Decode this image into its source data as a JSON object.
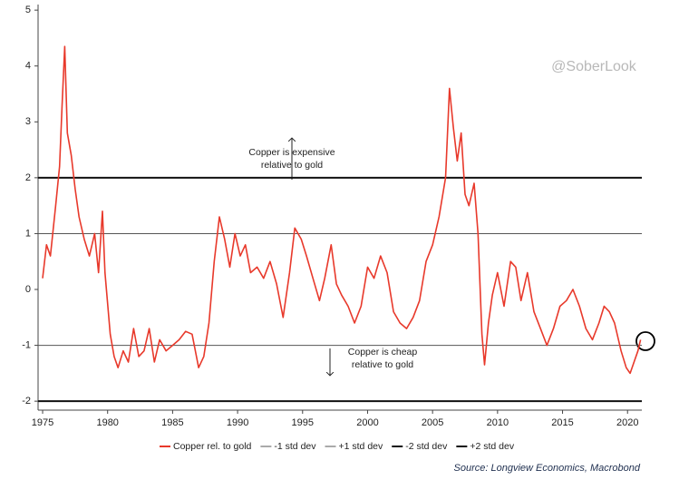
{
  "chart_data": {
    "type": "line",
    "series": [
      {
        "name": "Copper rel. to gold",
        "color": "#e8392b",
        "x": [
          1975.0,
          1975.3,
          1975.6,
          1976.0,
          1976.3,
          1976.5,
          1976.7,
          1976.9,
          1977.2,
          1977.5,
          1977.8,
          1978.2,
          1978.6,
          1979.0,
          1979.3,
          1979.6,
          1979.8,
          1980.2,
          1980.5,
          1980.8,
          1981.2,
          1981.6,
          1982.0,
          1982.4,
          1982.8,
          1983.2,
          1983.6,
          1984.0,
          1984.5,
          1985.0,
          1985.5,
          1986.0,
          1986.5,
          1987.0,
          1987.4,
          1987.8,
          1988.2,
          1988.6,
          1989.0,
          1989.4,
          1989.8,
          1990.2,
          1990.6,
          1991.0,
          1991.5,
          1992.0,
          1992.5,
          1993.0,
          1993.5,
          1994.0,
          1994.4,
          1994.9,
          1995.3,
          1995.8,
          1996.3,
          1996.7,
          1997.2,
          1997.6,
          1998.0,
          1998.5,
          1999.0,
          1999.5,
          2000.0,
          2000.5,
          2001.0,
          2001.5,
          2002.0,
          2002.5,
          2003.0,
          2003.5,
          2004.0,
          2004.5,
          2005.0,
          2005.5,
          2006.0,
          2006.3,
          2006.6,
          2006.9,
          2007.2,
          2007.5,
          2007.8,
          2008.2,
          2008.5,
          2008.8,
          2009.0,
          2009.3,
          2009.6,
          2010.0,
          2010.5,
          2011.0,
          2011.4,
          2011.8,
          2012.3,
          2012.8,
          2013.3,
          2013.8,
          2014.3,
          2014.8,
          2015.3,
          2015.8,
          2016.3,
          2016.8,
          2017.3,
          2017.8,
          2018.2,
          2018.6,
          2019.0,
          2019.5,
          2019.9,
          2020.2,
          2020.5,
          2020.8,
          2021.0
        ],
        "values": [
          0.2,
          0.8,
          0.6,
          1.5,
          2.2,
          3.3,
          4.35,
          2.8,
          2.4,
          1.8,
          1.3,
          0.9,
          0.6,
          1.0,
          0.3,
          1.4,
          0.3,
          -0.8,
          -1.2,
          -1.4,
          -1.1,
          -1.3,
          -0.7,
          -1.2,
          -1.1,
          -0.7,
          -1.3,
          -0.9,
          -1.1,
          -1.0,
          -0.9,
          -0.75,
          -0.8,
          -1.4,
          -1.2,
          -0.6,
          0.5,
          1.3,
          0.9,
          0.4,
          1.0,
          0.6,
          0.8,
          0.3,
          0.4,
          0.2,
          0.5,
          0.1,
          -0.5,
          0.3,
          1.1,
          0.9,
          0.6,
          0.2,
          -0.2,
          0.2,
          0.8,
          0.1,
          -0.1,
          -0.3,
          -0.6,
          -0.3,
          0.4,
          0.2,
          0.6,
          0.3,
          -0.4,
          -0.6,
          -0.7,
          -0.5,
          -0.2,
          0.5,
          0.8,
          1.3,
          2.0,
          3.6,
          2.9,
          2.3,
          2.8,
          1.7,
          1.5,
          1.9,
          1.0,
          -0.8,
          -1.35,
          -0.6,
          -0.1,
          0.3,
          -0.3,
          0.5,
          0.4,
          -0.2,
          0.3,
          -0.4,
          -0.7,
          -1.0,
          -0.7,
          -0.3,
          -0.2,
          0.0,
          -0.3,
          -0.7,
          -0.9,
          -0.6,
          -0.3,
          -0.4,
          -0.6,
          -1.1,
          -1.4,
          -1.5,
          -1.3,
          -1.1,
          -0.9
        ]
      }
    ],
    "reference_lines": [
      {
        "name": "-1 std dev",
        "value": -1,
        "color": "#555555",
        "style": "thin"
      },
      {
        "name": "+1 std dev",
        "value": 1,
        "color": "#555555",
        "style": "thin"
      },
      {
        "name": "-2 std dev",
        "value": -2,
        "color": "#111111",
        "style": "thick"
      },
      {
        "name": "+2 std dev",
        "value": 2,
        "color": "#111111",
        "style": "thick"
      }
    ],
    "xlim": [
      1974.65,
      2021.1
    ],
    "xticks": [
      1975,
      1980,
      1985,
      1990,
      1995,
      2000,
      2005,
      2010,
      2015,
      2020
    ],
    "ylim": [
      -2.16,
      5.1
    ],
    "yticks": [
      -2,
      -1,
      0,
      1,
      2,
      3,
      4,
      5
    ],
    "annotations": [
      {
        "lines": [
          "Copper is expensive",
          "relative to gold"
        ]
      },
      {
        "lines": [
          "Copper is cheap",
          "relative to gold"
        ]
      }
    ],
    "watermark": "@SoberLook",
    "source": "Source: Longview Economics, Macrobond"
  }
}
